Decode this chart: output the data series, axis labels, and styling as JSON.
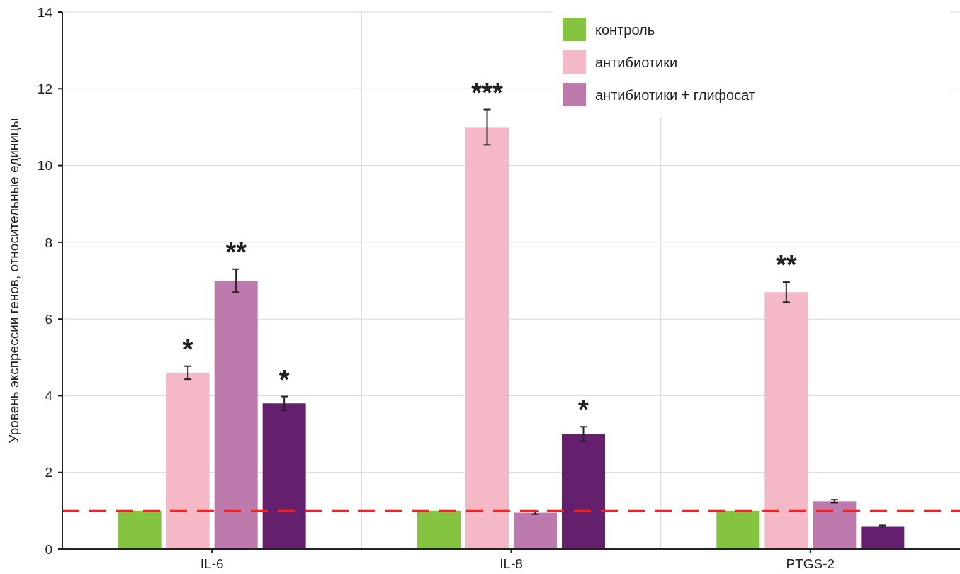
{
  "chart_data": {
    "type": "bar",
    "ylabel": "Уровень экспрессии генов, относительные единицы",
    "categories": [
      "IL-6",
      "IL-8",
      "PTGS-2"
    ],
    "series": [
      {
        "name": "контроль",
        "color": "#84c441",
        "values": [
          1,
          1,
          1
        ]
      },
      {
        "name": "антибиотики",
        "color": "#f4b8c6",
        "values": [
          4.6,
          11.0,
          6.7
        ],
        "errors": [
          0.17,
          0.46,
          0.26
        ],
        "value_labels": [
          "*",
          "***",
          "**"
        ]
      },
      {
        "name": "антибиотики + глифосат",
        "color": "#bd7aad",
        "values": [
          7.0,
          0.95,
          1.25
        ],
        "errors": [
          0.3,
          0.04,
          0.04
        ],
        "value_labels": [
          "**",
          null,
          null
        ]
      },
      {
        "color": "#64206d",
        "values": [
          3.8,
          3.0,
          0.6
        ],
        "errors": [
          0.18,
          0.19,
          0.02
        ],
        "value_labels": [
          "*",
          "*",
          null
        ]
      }
    ],
    "ylim": [
      0,
      14
    ],
    "yticks": [
      0,
      2,
      4,
      6,
      8,
      10,
      12,
      14
    ],
    "grid": true,
    "legend": "top right",
    "ref_lines": [
      {
        "axis": "y",
        "value": 1,
        "color": "#e8262a",
        "line_style": "dashed"
      }
    ]
  }
}
